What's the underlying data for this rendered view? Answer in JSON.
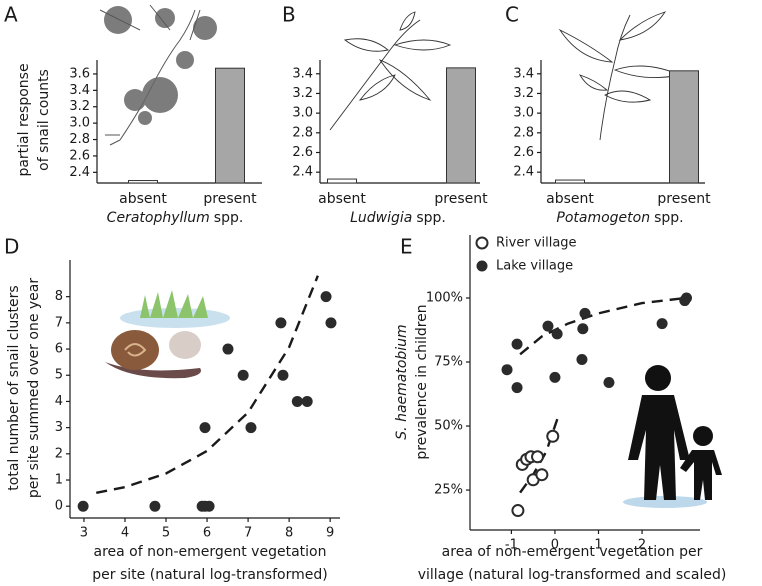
{
  "chart_data": [
    {
      "type": "bar",
      "label": "A",
      "categories": [
        "absent",
        "present"
      ],
      "values": [
        2.3,
        3.67
      ],
      "colors": [
        "#ffffff",
        "#a6a6a6"
      ],
      "ylim": [
        2.27,
        3.77
      ],
      "yticks": [
        2.4,
        2.6,
        2.8,
        {
          "value": 3,
          "label": "3.0"
        },
        3.2,
        3.4,
        3.6
      ],
      "ylabel": [
        "partial response",
        "of snail counts"
      ],
      "xlabel": [
        "Ceratophyllum",
        "spp."
      ]
    },
    {
      "type": "bar",
      "label": "B",
      "categories": [
        "absent",
        "present"
      ],
      "values": [
        2.33,
        3.46
      ],
      "colors": [
        "#ffffff",
        "#a6a6a6"
      ],
      "ylim": [
        2.29,
        3.54
      ],
      "yticks": [
        2.4,
        2.6,
        2.8,
        {
          "value": 3,
          "label": "3.0"
        },
        3.2,
        3.4
      ],
      "xlabel": [
        "Ludwigia",
        "spp."
      ]
    },
    {
      "type": "bar",
      "label": "C",
      "categories": [
        "absent",
        "present"
      ],
      "values": [
        2.32,
        3.43
      ],
      "colors": [
        "#ffffff",
        "#a6a6a6"
      ],
      "ylim": [
        2.29,
        3.54
      ],
      "yticks": [
        2.4,
        2.6,
        2.8,
        {
          "value": 3,
          "label": "3.0"
        },
        3.2,
        3.4
      ],
      "xlabel": [
        "Potamogeton",
        "spp."
      ]
    },
    {
      "type": "scatter",
      "label": "D",
      "color": "#2b2b2b",
      "x": [
        2.98,
        4.73,
        5.88,
        5.95,
        6.05,
        5.95,
        6.51,
        6.88,
        7.07,
        7.8,
        7.85,
        8.2,
        8.44,
        8.9,
        9.02
      ],
      "values": [
        0,
        0,
        0,
        0,
        0,
        3,
        6,
        5,
        3,
        7,
        5,
        4,
        4,
        8,
        7
      ],
      "fit": {
        "x": [
          3.3,
          4,
          5,
          6,
          7,
          8,
          8.7
        ],
        "values": [
          0.51,
          0.73,
          1.25,
          2.11,
          3.58,
          6.07,
          8.8
        ]
      },
      "xlim": [
        2.66,
        9.24
      ],
      "ylim": [
        -0.45,
        9.4
      ],
      "xticks": [
        3,
        4,
        5,
        6,
        7,
        8,
        9
      ],
      "yticks": [
        0,
        1,
        2,
        3,
        4,
        5,
        6,
        7,
        8
      ],
      "xlabel": [
        "area of non-emergent vegetation",
        "per site (natural log-transformed)"
      ],
      "ylabel": [
        "total number of snail clusters",
        "per site summed over one year"
      ]
    },
    {
      "type": "scatter",
      "label": "E",
      "legend": "upper left",
      "series": [
        {
          "name": "River village",
          "color": "#ffffff",
          "edgecolor": "#2b2b2b",
          "x": [
            -0.85,
            -0.75,
            -0.65,
            -0.55,
            -0.5,
            -0.4,
            -0.3,
            -0.05
          ],
          "values": [
            17,
            35,
            37,
            38,
            29,
            38,
            31,
            46
          ],
          "fit": {
            "x": [
              -0.8,
              -0.5,
              -0.2,
              0.1
            ],
            "values": [
              24,
              31,
              40,
              55
            ]
          }
        },
        {
          "name": "Lake village",
          "color": "#2b2b2b",
          "x": [
            -1.1,
            -0.87,
            -0.87,
            -0.16,
            0.05,
            0,
            0.69,
            0.64,
            0.62,
            1.24,
            2.46,
            2.98,
            3.02
          ],
          "values": [
            72,
            82,
            65,
            89,
            86,
            69,
            94,
            88,
            76,
            67,
            90,
            99,
            100
          ],
          "fit": {
            "x": [
              -0.8,
              -0.3,
              0.3,
              1,
              2,
              3
            ],
            "values": [
              78,
              85,
              90,
              94,
              98,
              100
            ]
          }
        }
      ],
      "xlim": [
        -1.95,
        3.33
      ],
      "ylim": [
        9.4,
        124.6
      ],
      "xticks": [
        -1,
        0,
        1,
        2
      ],
      "yticks": [
        {
          "value": 25,
          "label": "25%"
        },
        {
          "value": 50,
          "label": "50%"
        },
        {
          "value": 75,
          "label": "75%"
        },
        {
          "value": 100,
          "label": "100%"
        }
      ],
      "xlabel": [
        "area of non-emergent vegetation per",
        "village (natural log-transformed and scaled)"
      ],
      "ylabel": [
        "S. haematobium",
        "prevalence in children"
      ]
    }
  ]
}
